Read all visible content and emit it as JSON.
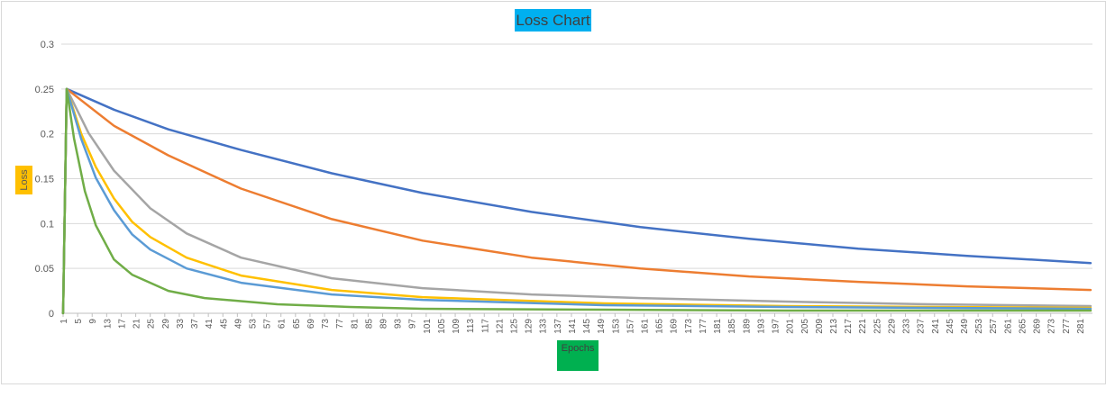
{
  "chart_data": {
    "type": "line",
    "title": "Loss Chart",
    "xlabel": "Epochs",
    "ylabel": "Loss",
    "ylim": [
      0,
      0.3
    ],
    "y_ticks": [
      0,
      0.05,
      0.1,
      0.15,
      0.2,
      0.25,
      0.3
    ],
    "y_tick_labels": [
      "0",
      "0.05",
      "0.1",
      "0.15",
      "0.2",
      "0.25",
      "0.3"
    ],
    "x_range": [
      1,
      284
    ],
    "x_tick_labels": [
      "1",
      "5",
      "9",
      "13",
      "17",
      "21",
      "25",
      "29",
      "33",
      "37",
      "41",
      "45",
      "49",
      "53",
      "57",
      "61",
      "65",
      "69",
      "73",
      "77",
      "81",
      "85",
      "89",
      "93",
      "97",
      "101",
      "105",
      "109",
      "113",
      "117",
      "121",
      "125",
      "129",
      "133",
      "137",
      "141",
      "145",
      "149",
      "153",
      "157",
      "161",
      "165",
      "169",
      "173",
      "177",
      "181",
      "185",
      "189",
      "193",
      "197",
      "201",
      "205",
      "209",
      "213",
      "217",
      "221",
      "225",
      "229",
      "233",
      "237",
      "241",
      "245",
      "249",
      "253",
      "257",
      "261",
      "265",
      "269",
      "273",
      "277",
      "281"
    ],
    "grid": "horizontal",
    "legend": "none",
    "series": [
      {
        "color": "#4472c4",
        "x": [
          1,
          2,
          15,
          30,
          50,
          75,
          100,
          130,
          160,
          190,
          220,
          250,
          284
        ],
        "values": [
          0,
          0.25,
          0.227,
          0.205,
          0.182,
          0.156,
          0.134,
          0.113,
          0.096,
          0.083,
          0.072,
          0.064,
          0.056
        ]
      },
      {
        "color": "#ed7d31",
        "x": [
          1,
          2,
          15,
          30,
          50,
          75,
          100,
          130,
          160,
          190,
          220,
          250,
          284
        ],
        "values": [
          0,
          0.25,
          0.209,
          0.176,
          0.139,
          0.105,
          0.081,
          0.062,
          0.05,
          0.041,
          0.035,
          0.03,
          0.026
        ]
      },
      {
        "color": "#a5a5a5",
        "x": [
          1,
          2,
          8,
          15,
          25,
          35,
          50,
          75,
          100,
          130,
          160,
          200,
          240,
          284
        ],
        "values": [
          0,
          0.25,
          0.201,
          0.159,
          0.117,
          0.089,
          0.062,
          0.039,
          0.028,
          0.021,
          0.017,
          0.013,
          0.01,
          0.008
        ]
      },
      {
        "color": "#ffc000",
        "x": [
          1,
          2,
          6,
          10,
          15,
          20,
          25,
          35,
          50,
          75,
          100,
          150,
          200,
          284
        ],
        "values": [
          0,
          0.25,
          0.2,
          0.163,
          0.128,
          0.102,
          0.085,
          0.062,
          0.042,
          0.026,
          0.018,
          0.011,
          0.008,
          0.006
        ]
      },
      {
        "color": "#5b9bd5",
        "x": [
          1,
          2,
          6,
          10,
          15,
          20,
          25,
          35,
          50,
          75,
          100,
          150,
          200,
          284
        ],
        "values": [
          0,
          0.25,
          0.194,
          0.151,
          0.115,
          0.088,
          0.071,
          0.05,
          0.034,
          0.021,
          0.015,
          0.009,
          0.007,
          0.005
        ]
      },
      {
        "color": "#70ad47",
        "x": [
          1,
          2,
          4,
          7,
          10,
          15,
          20,
          30,
          40,
          60,
          80,
          100,
          150,
          200,
          284
        ],
        "values": [
          0,
          0.25,
          0.195,
          0.136,
          0.098,
          0.06,
          0.043,
          0.025,
          0.017,
          0.01,
          0.007,
          0.005,
          0.004,
          0.003,
          0.003
        ]
      }
    ]
  }
}
